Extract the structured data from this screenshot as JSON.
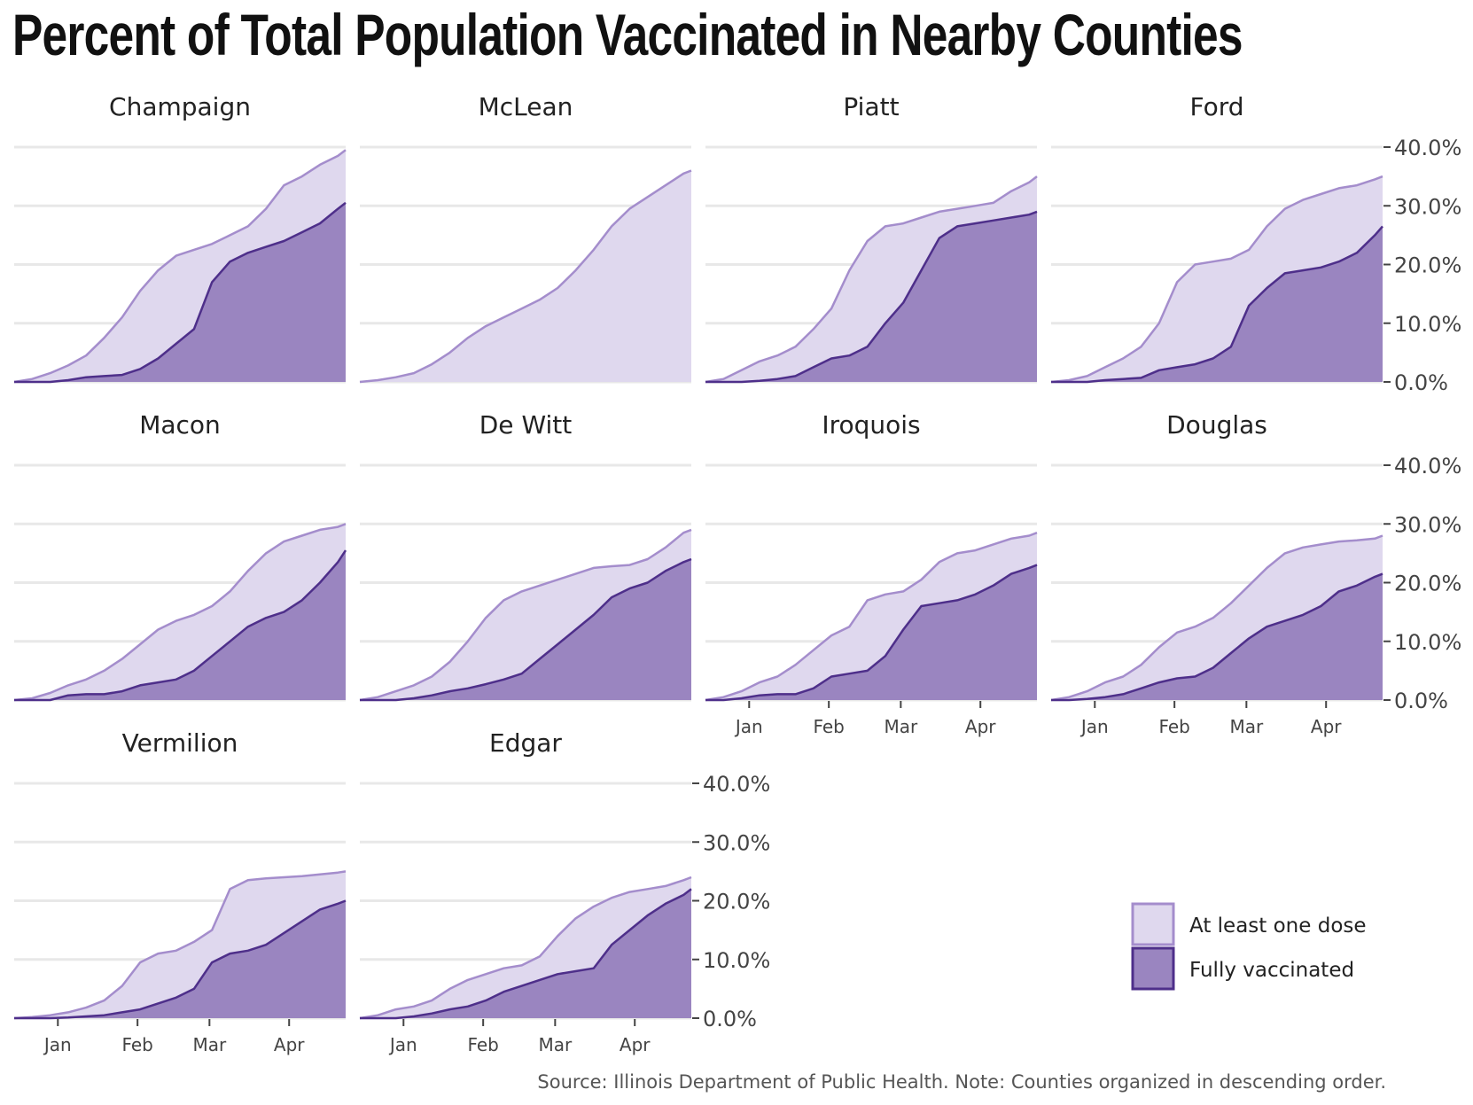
{
  "chart_data": {
    "type": "area",
    "title": "Percent of Total Population Vaccinated in Nearby Counties",
    "source": "Source: Illinois Department of Public Health. Note: Counties organized in descending order.",
    "x_range": [
      "2020-12-15",
      "2021-04-23"
    ],
    "x_ticks": [
      "Jan",
      "Feb",
      "Mar",
      "Apr"
    ],
    "x_tick_dates": [
      "2021-01-01",
      "2021-02-01",
      "2021-03-01",
      "2021-04-01"
    ],
    "ylim": [
      0,
      40
    ],
    "y_ticks": [
      "0.0%",
      "10.0%",
      "20.0%",
      "30.0%",
      "40.0%"
    ],
    "grid": "horizontal",
    "colors": {
      "at_least_one_dose_fill": "#dfd8ee",
      "at_least_one_dose_line": "#a48dcc",
      "fully_vaccinated_fill": "#9a85c0",
      "fully_vaccinated_line": "#4e2f8a",
      "grid": "#e8e8e8"
    },
    "legend": {
      "placement": "bottom-right",
      "entries": [
        "At least one dose",
        "Fully vaccinated"
      ]
    },
    "dates": [
      "2020-12-15",
      "2020-12-22",
      "2020-12-29",
      "2021-01-05",
      "2021-01-12",
      "2021-01-19",
      "2021-01-26",
      "2021-02-02",
      "2021-02-09",
      "2021-02-16",
      "2021-02-23",
      "2021-03-02",
      "2021-03-09",
      "2021-03-16",
      "2021-03-23",
      "2021-03-30",
      "2021-04-06",
      "2021-04-13",
      "2021-04-20",
      "2021-04-23"
    ],
    "panels": [
      {
        "county": "Champaign",
        "at_least_one_dose": [
          0,
          0.5,
          1.5,
          2.8,
          4.5,
          7.5,
          11,
          15.5,
          19,
          21.5,
          22.5,
          23.5,
          25,
          26.5,
          29.5,
          33.5,
          35,
          37,
          38.5,
          39.5
        ],
        "fully_vaccinated": [
          0,
          0,
          0,
          0.3,
          0.8,
          1,
          1.2,
          2.2,
          4,
          6.5,
          9,
          17,
          20.5,
          22,
          23,
          24,
          25.5,
          27,
          29.5,
          30.5
        ]
      },
      {
        "county": "McLean",
        "at_least_one_dose": [
          0,
          0.3,
          0.8,
          1.5,
          3,
          5,
          7.5,
          9.5,
          11,
          12.5,
          14,
          16,
          19,
          22.5,
          26.5,
          29.5,
          31.5,
          33.5,
          35.5,
          36
        ]
      },
      {
        "county": "Piatt",
        "at_least_one_dose": [
          0,
          0.5,
          2,
          3.5,
          4.5,
          6,
          9,
          12.5,
          19,
          24,
          26.5,
          27,
          28,
          29,
          29.5,
          30,
          30.5,
          32.5,
          34,
          35
        ],
        "fully_vaccinated": [
          0,
          0,
          0,
          0.2,
          0.5,
          1,
          2.5,
          4,
          4.5,
          6,
          10,
          13.5,
          19,
          24.5,
          26.5,
          27,
          27.5,
          28,
          28.5,
          29
        ]
      },
      {
        "county": "Ford",
        "at_least_one_dose": [
          0,
          0.3,
          1,
          2.5,
          4,
          6,
          10,
          17,
          20,
          20.5,
          21,
          22.5,
          26.5,
          29.5,
          31,
          32,
          33,
          33.5,
          34.5,
          35
        ],
        "fully_vaccinated": [
          0,
          0,
          0,
          0.3,
          0.5,
          0.7,
          2,
          2.5,
          3,
          4,
          6,
          13,
          16,
          18.5,
          19,
          19.5,
          20.5,
          22,
          25,
          26.5
        ]
      },
      {
        "county": "Macon",
        "at_least_one_dose": [
          0,
          0.3,
          1.2,
          2.5,
          3.5,
          5,
          7,
          9.5,
          12,
          13.5,
          14.5,
          16,
          18.5,
          22,
          25,
          27,
          28,
          29,
          29.5,
          30
        ],
        "fully_vaccinated": [
          0,
          0,
          0,
          0.8,
          1,
          1,
          1.5,
          2.5,
          3,
          3.5,
          5,
          7.5,
          10,
          12.5,
          14,
          15,
          17,
          20,
          23.5,
          25.5
        ]
      },
      {
        "county": "De Witt",
        "at_least_one_dose": [
          0,
          0.5,
          1.5,
          2.5,
          4,
          6.5,
          10,
          14,
          17,
          18.5,
          19.5,
          20.5,
          21.5,
          22.5,
          22.8,
          23,
          24,
          26,
          28.5,
          29
        ],
        "fully_vaccinated": [
          0,
          0,
          0,
          0.3,
          0.8,
          1.5,
          2,
          2.7,
          3.5,
          4.5,
          7,
          9.5,
          12,
          14.5,
          17.5,
          19,
          20,
          22,
          23.5,
          24
        ]
      },
      {
        "county": "Iroquois",
        "at_least_one_dose": [
          0,
          0.5,
          1.5,
          3,
          4,
          6,
          8.5,
          11,
          12.5,
          17,
          18,
          18.5,
          20.5,
          23.5,
          25,
          25.5,
          26.5,
          27.5,
          28,
          28.5
        ],
        "fully_vaccinated": [
          0,
          0,
          0.3,
          0.8,
          1,
          1,
          2,
          4,
          4.5,
          5,
          7.5,
          12,
          16,
          16.5,
          17,
          18,
          19.5,
          21.5,
          22.5,
          23
        ]
      },
      {
        "county": "Douglas",
        "at_least_one_dose": [
          0,
          0.5,
          1.5,
          3,
          4,
          6,
          9,
          11.5,
          12.5,
          14,
          16.5,
          19.5,
          22.5,
          25,
          26,
          26.5,
          27,
          27.2,
          27.5,
          28
        ],
        "fully_vaccinated": [
          0,
          0,
          0.2,
          0.5,
          1,
          2,
          3,
          3.7,
          4,
          5.5,
          8,
          10.5,
          12.5,
          13.5,
          14.5,
          16,
          18.5,
          19.5,
          21,
          21.5
        ]
      },
      {
        "county": "Vermilion",
        "at_least_one_dose": [
          0,
          0.2,
          0.5,
          1,
          1.8,
          3,
          5.5,
          9.5,
          11,
          11.5,
          13,
          15,
          22,
          23.5,
          23.8,
          24,
          24.2,
          24.5,
          24.8,
          25
        ],
        "fully_vaccinated": [
          0,
          0,
          0,
          0.1,
          0.3,
          0.5,
          1,
          1.5,
          2.5,
          3.5,
          5,
          9.5,
          11,
          11.5,
          12.5,
          14.5,
          16.5,
          18.5,
          19.5,
          20
        ]
      },
      {
        "county": "Edgar",
        "at_least_one_dose": [
          0,
          0.5,
          1.5,
          2,
          3,
          5,
          6.5,
          7.5,
          8.5,
          9,
          10.5,
          14,
          17,
          19,
          20.5,
          21.5,
          22,
          22.5,
          23.5,
          24
        ],
        "fully_vaccinated": [
          0,
          0,
          0,
          0.3,
          0.8,
          1.5,
          2,
          3,
          4.5,
          5.5,
          6.5,
          7.5,
          8,
          8.5,
          12.5,
          15,
          17.5,
          19.5,
          21,
          22
        ]
      }
    ]
  }
}
